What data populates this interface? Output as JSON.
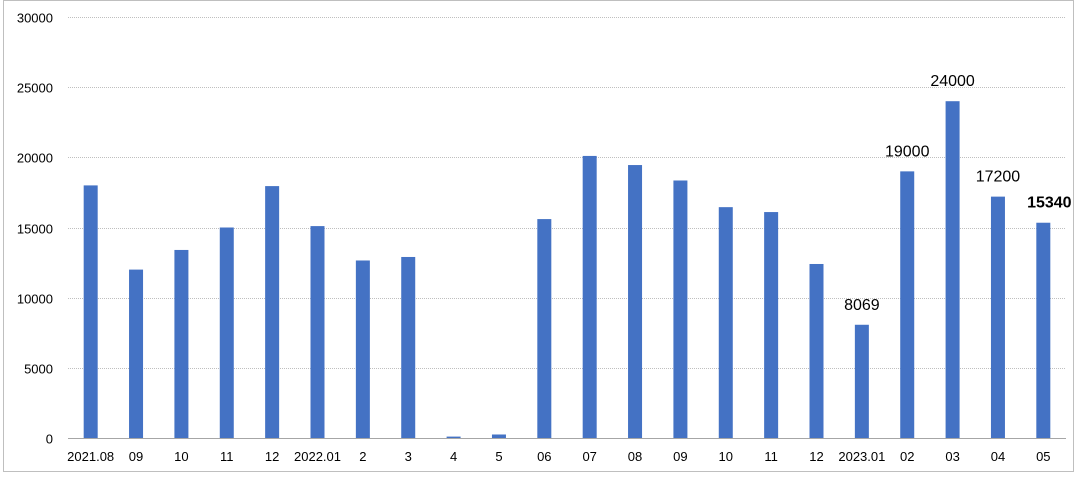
{
  "chart_data": {
    "type": "bar",
    "title": "",
    "xlabel": "",
    "ylabel": "",
    "ylim": [
      0,
      30000
    ],
    "yticks": [
      0,
      5000,
      10000,
      15000,
      20000,
      25000,
      30000
    ],
    "grid": true,
    "legend": "none",
    "categories": [
      "2021.08",
      "09",
      "10",
      "11",
      "12",
      "2022.01",
      "2",
      "3",
      "4",
      "5",
      "06",
      "07",
      "08",
      "09",
      "10",
      "11",
      "12",
      "2023.01",
      "02",
      "03",
      "04",
      "05"
    ],
    "series": [
      {
        "values": [
          18000,
          12000,
          13400,
          15000,
          17950,
          15100,
          12650,
          12900,
          100,
          250,
          15600,
          20100,
          19450,
          18350,
          16450,
          16100,
          12400,
          8069,
          19000,
          24000,
          17200,
          15340
        ],
        "color": "#4472c4"
      }
    ],
    "data_labels": [
      {
        "index": 17,
        "text": "8069",
        "color": "#000000",
        "bold": false
      },
      {
        "index": 18,
        "text": "19000",
        "color": "#000000",
        "bold": false
      },
      {
        "index": 19,
        "text": "24000",
        "color": "#000000",
        "bold": false
      },
      {
        "index": 20,
        "text": "17200",
        "color": "#000000",
        "bold": false
      },
      {
        "index": 21,
        "text": "15340",
        "color": "#c00000",
        "bold": true
      }
    ],
    "gridline_color": "#bfbfbf",
    "axis_color": "#a6a6a6"
  }
}
